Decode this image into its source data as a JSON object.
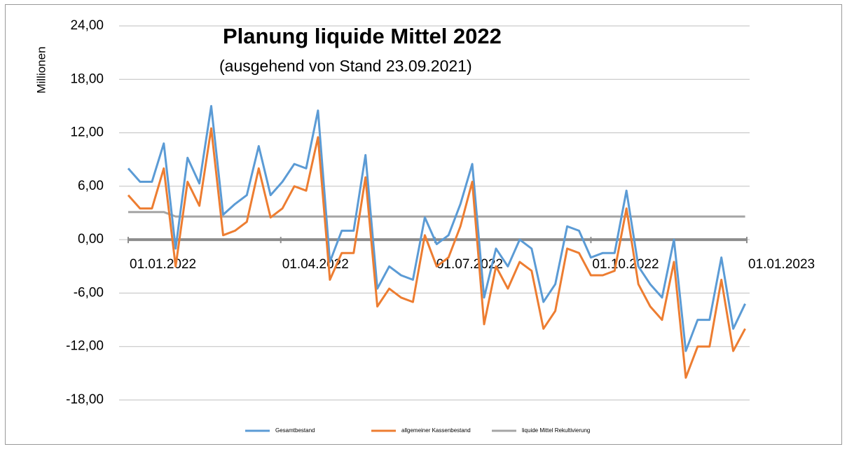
{
  "chart_data": {
    "type": "line",
    "title": "Planung liquide Mittel 2022",
    "subtitle": "(ausgehend von Stand 23.09.2021)",
    "y_label": "Millionen",
    "x": [
      "01.01.2022",
      "08.01.2022",
      "15.01.2022",
      "22.01.2022",
      "29.01.2022",
      "05.02.2022",
      "12.02.2022",
      "19.02.2022",
      "26.02.2022",
      "05.03.2022",
      "12.03.2022",
      "19.03.2022",
      "26.03.2022",
      "02.04.2022",
      "09.04.2022",
      "16.04.2022",
      "23.04.2022",
      "30.04.2022",
      "07.05.2022",
      "14.05.2022",
      "21.05.2022",
      "28.05.2022",
      "04.06.2022",
      "11.06.2022",
      "18.06.2022",
      "25.06.2022",
      "02.07.2022",
      "09.07.2022",
      "16.07.2022",
      "23.07.2022",
      "30.07.2022",
      "06.08.2022",
      "13.08.2022",
      "20.08.2022",
      "27.08.2022",
      "03.09.2022",
      "10.09.2022",
      "17.09.2022",
      "24.09.2022",
      "01.10.2022",
      "08.10.2022",
      "15.10.2022",
      "22.10.2022",
      "29.10.2022",
      "05.11.2022",
      "12.11.2022",
      "19.11.2022",
      "26.11.2022",
      "03.12.2022",
      "10.12.2022",
      "17.12.2022",
      "24.12.2022",
      "31.12.2022"
    ],
    "series": [
      {
        "name": "Gesamtbestand",
        "color": "#5b9bd5",
        "values": [
          8,
          6.5,
          6.5,
          10.8,
          -1,
          9.2,
          6.3,
          15,
          2.8,
          4,
          5,
          10.5,
          5,
          6.5,
          8.5,
          8,
          14.5,
          -2.5,
          1,
          1,
          9.5,
          -5.5,
          -3,
          -4,
          -4.5,
          2.5,
          -0.5,
          0.5,
          4,
          8.5,
          -6.5,
          -1,
          -3,
          0,
          -1,
          -7,
          -5,
          1.5,
          1,
          -2,
          -1.5,
          -1.5,
          5.5,
          -3,
          -5,
          -6.5,
          0,
          -12.5,
          -9,
          -9,
          -2,
          -10,
          -7.2
        ]
      },
      {
        "name": "allgemeiner Kassenbestand",
        "color": "#ed7d31",
        "values": [
          5,
          3.5,
          3.5,
          8,
          -3,
          6.5,
          3.8,
          12.5,
          0.5,
          1,
          2,
          8,
          2.5,
          3.5,
          6,
          5.5,
          11.5,
          -4.5,
          -1.5,
          -1.5,
          7,
          -7.5,
          -5.5,
          -6.5,
          -7,
          0.5,
          -3,
          -2,
          1.5,
          6.5,
          -9.5,
          -3,
          -5.5,
          -2.5,
          -3.5,
          -10,
          -8,
          -1,
          -1.5,
          -4,
          -4,
          -3.5,
          3.5,
          -5,
          -7.5,
          -9,
          -2.5,
          -15.5,
          -12,
          -12,
          -4.5,
          -12.5,
          -10
        ]
      },
      {
        "name": "liquide Mittel Rekultivierung",
        "color": "#a5a5a5",
        "values": [
          3.1,
          3.1,
          3.1,
          3.1,
          2.6,
          2.6,
          2.6,
          2.6,
          2.6,
          2.6,
          2.6,
          2.6,
          2.6,
          2.6,
          2.6,
          2.6,
          2.6,
          2.6,
          2.6,
          2.6,
          2.6,
          2.6,
          2.6,
          2.6,
          2.6,
          2.6,
          2.6,
          2.6,
          2.6,
          2.6,
          2.6,
          2.6,
          2.6,
          2.6,
          2.6,
          2.6,
          2.6,
          2.6,
          2.6,
          2.6,
          2.6,
          2.6,
          2.6,
          2.6,
          2.6,
          2.6,
          2.6,
          2.6,
          2.6,
          2.6,
          2.6,
          2.6,
          2.6
        ]
      }
    ],
    "xlim": [
      "01.01.2022",
      "01.01.2023"
    ],
    "xticks": [
      "01.01.2022",
      "01.04.2022",
      "01.07.2022",
      "01.10.2022",
      "01.01.2023"
    ],
    "ylim": [
      -18,
      24
    ],
    "yticks": [
      {
        "value": -18,
        "label": "-18,00"
      },
      {
        "value": -12,
        "label": "-12,00"
      },
      {
        "value": -6,
        "label": "-6,00"
      },
      {
        "value": 0,
        "label": "0,00"
      },
      {
        "value": 6,
        "label": "6,00"
      },
      {
        "value": 12,
        "label": "12,00"
      },
      {
        "value": 18,
        "label": "18,00"
      },
      {
        "value": 24,
        "label": "24,00"
      }
    ],
    "grid": true,
    "negative_tick_color": "#ff0000",
    "legend": "bottom"
  }
}
